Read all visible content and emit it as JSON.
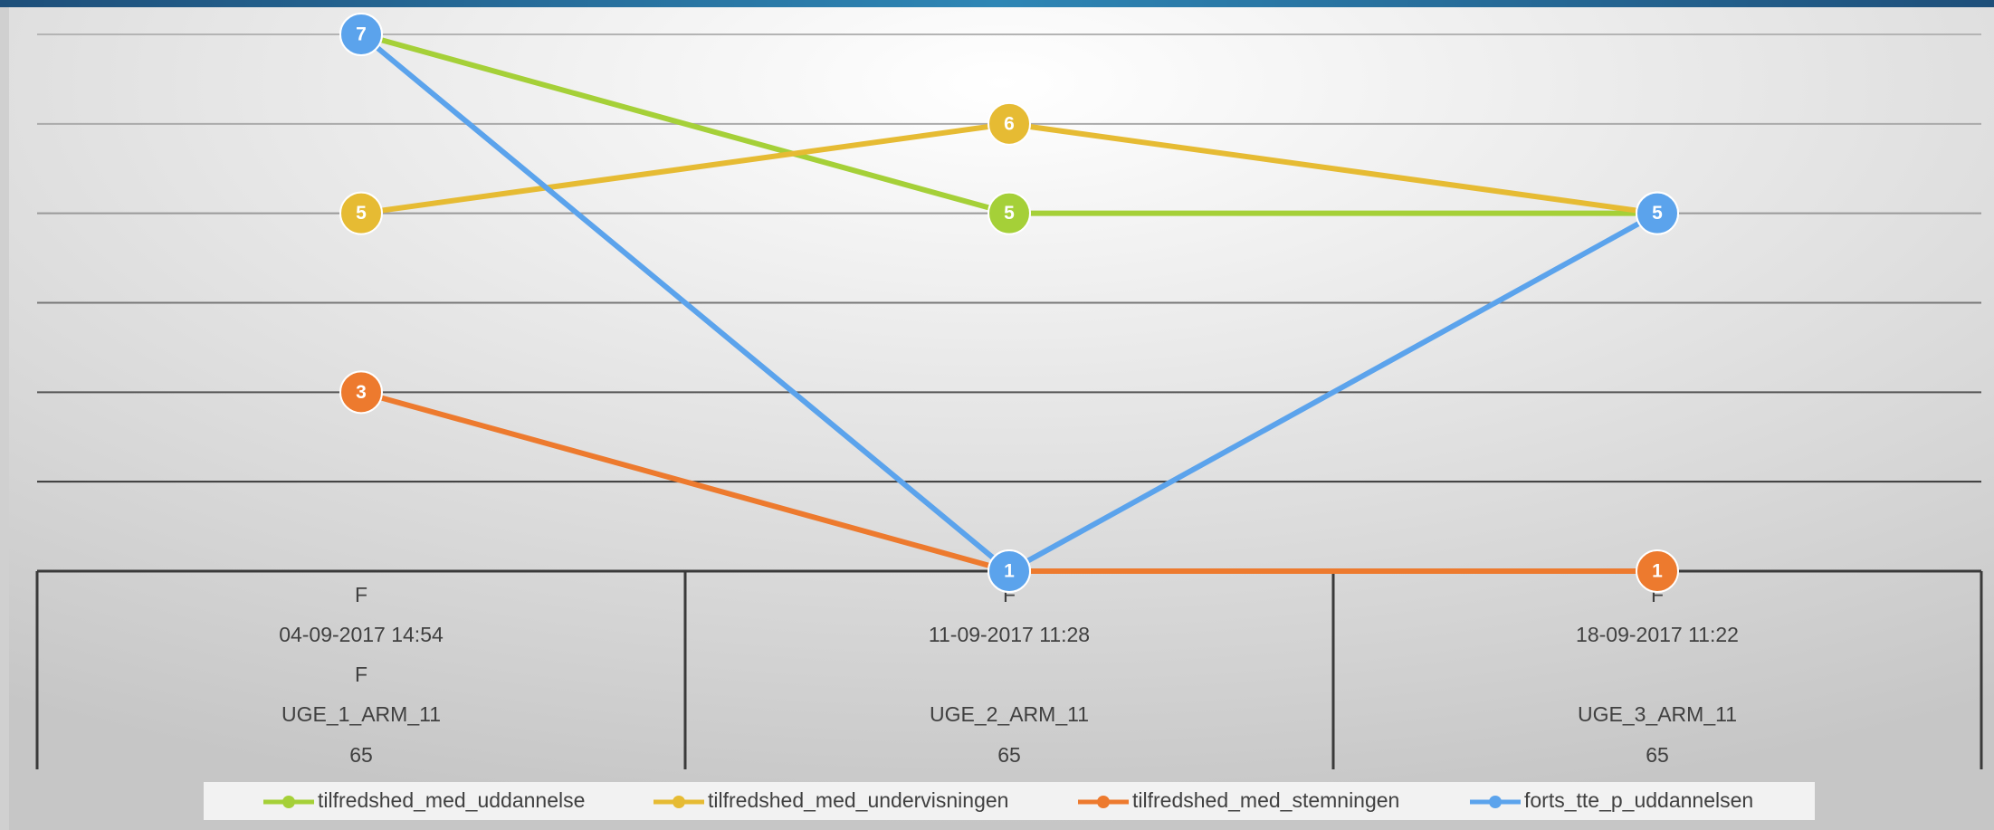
{
  "chart_data": {
    "type": "line",
    "categories": [
      [
        "F",
        "04-09-2017 14:54",
        "F",
        "UGE_1_ARM_11",
        "65"
      ],
      [
        "F",
        "11-09-2017 11:28",
        null,
        "UGE_2_ARM_11",
        "65"
      ],
      [
        "F",
        "18-09-2017 11:22",
        null,
        "UGE_3_ARM_11",
        "65"
      ]
    ],
    "series": [
      {
        "name": "tilfredshed_med_uddannelse",
        "color": "#a5d038",
        "values": [
          7,
          5,
          5
        ]
      },
      {
        "name": "tilfredshed_med_undervisningen",
        "color": "#e6bb33",
        "values": [
          5,
          6,
          5
        ]
      },
      {
        "name": "tilfredshed_med_stemningen",
        "color": "#ed7a2e",
        "values": [
          3,
          1,
          1
        ]
      },
      {
        "name": "forts_tte_p_uddannelsen",
        "color": "#5ba3ec",
        "values": [
          7,
          1,
          5
        ]
      }
    ],
    "ylim": [
      1,
      7
    ],
    "yticks": [
      1,
      2,
      3,
      4,
      5,
      6,
      7
    ],
    "grid": true,
    "legend": "bottom"
  }
}
